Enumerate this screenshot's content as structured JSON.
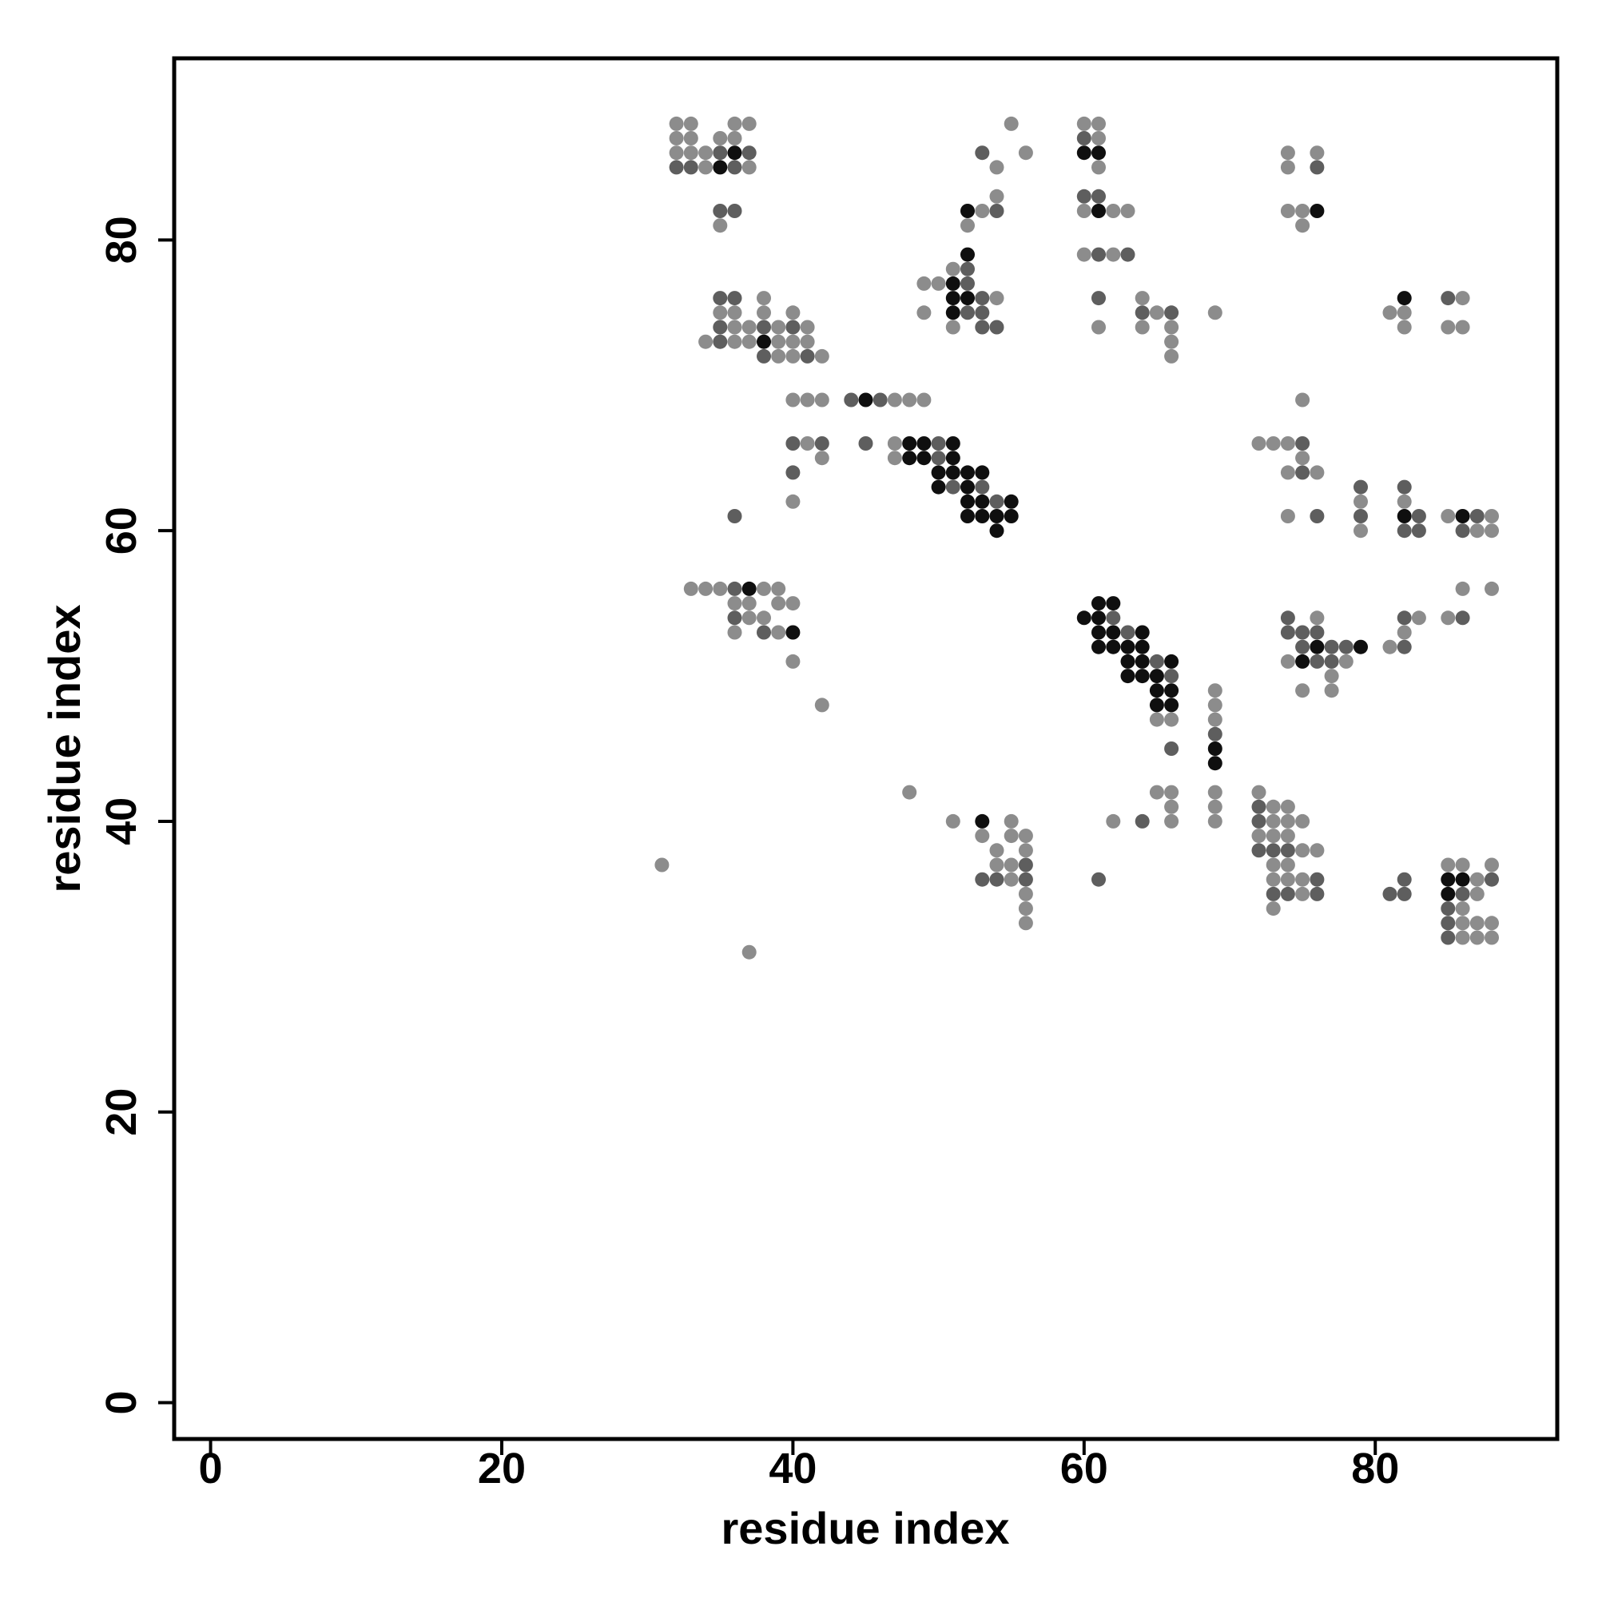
{
  "chart_data": {
    "type": "scatter",
    "title": "",
    "xlabel": "residue index",
    "ylabel": "residue index",
    "xlim": [
      -2.5,
      92.5
    ],
    "ylim": [
      -2.5,
      92.5
    ],
    "xticks": [
      0,
      20,
      40,
      60,
      80
    ],
    "yticks": [
      0,
      20,
      40,
      60,
      80
    ],
    "grid": false,
    "legend": "none",
    "point_color_note": "grayscale by level",
    "level_colors": {
      "1": "#8c8c8c",
      "2": "#5e5e5e",
      "3": "#0f0f0f"
    },
    "points": [
      [
        32,
        88,
        1
      ],
      [
        33,
        88,
        1
      ],
      [
        36,
        88,
        1
      ],
      [
        37,
        88,
        1
      ],
      [
        32,
        87,
        1
      ],
      [
        33,
        87,
        1
      ],
      [
        35,
        87,
        1
      ],
      [
        36,
        87,
        1
      ],
      [
        32,
        86,
        1
      ],
      [
        33,
        86,
        1
      ],
      [
        34,
        86,
        1
      ],
      [
        35,
        86,
        2
      ],
      [
        36,
        86,
        3
      ],
      [
        37,
        86,
        2
      ],
      [
        32,
        85,
        2
      ],
      [
        33,
        85,
        2
      ],
      [
        34,
        85,
        1
      ],
      [
        35,
        85,
        3
      ],
      [
        36,
        85,
        2
      ],
      [
        37,
        85,
        1
      ],
      [
        35,
        82,
        2
      ],
      [
        36,
        82,
        2
      ],
      [
        35,
        81,
        1
      ],
      [
        35,
        76,
        2
      ],
      [
        36,
        76,
        2
      ],
      [
        38,
        76,
        1
      ],
      [
        35,
        75,
        1
      ],
      [
        36,
        75,
        1
      ],
      [
        38,
        75,
        1
      ],
      [
        40,
        75,
        1
      ],
      [
        35,
        74,
        2
      ],
      [
        36,
        74,
        1
      ],
      [
        37,
        74,
        1
      ],
      [
        38,
        74,
        2
      ],
      [
        39,
        74,
        1
      ],
      [
        40,
        74,
        2
      ],
      [
        41,
        74,
        1
      ],
      [
        34,
        73,
        1
      ],
      [
        35,
        73,
        2
      ],
      [
        36,
        73,
        1
      ],
      [
        37,
        73,
        1
      ],
      [
        38,
        73,
        3
      ],
      [
        39,
        73,
        1
      ],
      [
        40,
        73,
        1
      ],
      [
        41,
        73,
        1
      ],
      [
        38,
        72,
        2
      ],
      [
        39,
        72,
        1
      ],
      [
        40,
        72,
        1
      ],
      [
        41,
        72,
        2
      ],
      [
        42,
        72,
        1
      ],
      [
        40,
        69,
        1
      ],
      [
        41,
        69,
        1
      ],
      [
        42,
        69,
        1
      ],
      [
        40,
        66,
        2
      ],
      [
        41,
        66,
        1
      ],
      [
        42,
        66,
        2
      ],
      [
        42,
        65,
        1
      ],
      [
        40,
        64,
        2
      ],
      [
        40,
        62,
        1
      ],
      [
        36,
        61,
        2
      ],
      [
        33,
        56,
        1
      ],
      [
        34,
        56,
        1
      ],
      [
        35,
        56,
        1
      ],
      [
        36,
        56,
        2
      ],
      [
        37,
        56,
        3
      ],
      [
        38,
        56,
        1
      ],
      [
        39,
        56,
        1
      ],
      [
        36,
        55,
        1
      ],
      [
        37,
        55,
        1
      ],
      [
        39,
        55,
        1
      ],
      [
        40,
        55,
        1
      ],
      [
        36,
        54,
        2
      ],
      [
        37,
        54,
        1
      ],
      [
        38,
        54,
        1
      ],
      [
        36,
        53,
        1
      ],
      [
        38,
        53,
        2
      ],
      [
        39,
        53,
        1
      ],
      [
        40,
        53,
        3
      ],
      [
        40,
        51,
        1
      ],
      [
        42,
        48,
        1
      ],
      [
        31,
        37,
        1
      ],
      [
        37,
        31,
        1
      ],
      [
        44,
        69,
        2
      ],
      [
        45,
        69,
        3
      ],
      [
        46,
        69,
        2
      ],
      [
        47,
        69,
        1
      ],
      [
        48,
        69,
        1
      ],
      [
        49,
        69,
        1
      ],
      [
        45,
        66,
        2
      ],
      [
        47,
        66,
        1
      ],
      [
        48,
        66,
        3
      ],
      [
        49,
        66,
        3
      ],
      [
        50,
        66,
        2
      ],
      [
        51,
        66,
        3
      ],
      [
        47,
        65,
        1
      ],
      [
        48,
        65,
        3
      ],
      [
        49,
        65,
        3
      ],
      [
        50,
        65,
        2
      ],
      [
        51,
        65,
        3
      ],
      [
        50,
        64,
        3
      ],
      [
        51,
        64,
        3
      ],
      [
        52,
        64,
        3
      ],
      [
        53,
        64,
        3
      ],
      [
        50,
        63,
        3
      ],
      [
        51,
        63,
        2
      ],
      [
        52,
        63,
        3
      ],
      [
        53,
        63,
        2
      ],
      [
        52,
        62,
        3
      ],
      [
        53,
        62,
        3
      ],
      [
        54,
        62,
        2
      ],
      [
        55,
        62,
        3
      ],
      [
        52,
        61,
        3
      ],
      [
        53,
        61,
        3
      ],
      [
        54,
        61,
        3
      ],
      [
        55,
        61,
        3
      ],
      [
        54,
        60,
        3
      ],
      [
        55,
        88,
        1
      ],
      [
        53,
        86,
        2
      ],
      [
        56,
        86,
        1
      ],
      [
        54,
        85,
        1
      ],
      [
        54,
        83,
        1
      ],
      [
        52,
        82,
        3
      ],
      [
        53,
        82,
        1
      ],
      [
        54,
        82,
        2
      ],
      [
        52,
        81,
        1
      ],
      [
        52,
        79,
        3
      ],
      [
        52,
        78,
        2
      ],
      [
        51,
        78,
        1
      ],
      [
        49,
        77,
        1
      ],
      [
        50,
        77,
        1
      ],
      [
        51,
        77,
        3
      ],
      [
        52,
        77,
        2
      ],
      [
        51,
        76,
        3
      ],
      [
        52,
        76,
        3
      ],
      [
        53,
        76,
        2
      ],
      [
        54,
        76,
        1
      ],
      [
        49,
        75,
        1
      ],
      [
        51,
        75,
        3
      ],
      [
        52,
        75,
        2
      ],
      [
        53,
        75,
        2
      ],
      [
        51,
        74,
        1
      ],
      [
        53,
        74,
        2
      ],
      [
        54,
        74,
        2
      ],
      [
        48,
        42,
        1
      ],
      [
        51,
        40,
        1
      ],
      [
        53,
        40,
        3
      ],
      [
        55,
        40,
        1
      ],
      [
        53,
        39,
        1
      ],
      [
        55,
        39,
        1
      ],
      [
        56,
        39,
        1
      ],
      [
        54,
        38,
        1
      ],
      [
        56,
        38,
        1
      ],
      [
        54,
        37,
        1
      ],
      [
        55,
        37,
        1
      ],
      [
        56,
        37,
        2
      ],
      [
        53,
        36,
        2
      ],
      [
        54,
        36,
        2
      ],
      [
        55,
        36,
        1
      ],
      [
        56,
        36,
        2
      ],
      [
        56,
        35,
        1
      ],
      [
        56,
        34,
        1
      ],
      [
        56,
        33,
        1
      ],
      [
        60,
        88,
        1
      ],
      [
        61,
        88,
        1
      ],
      [
        60,
        87,
        2
      ],
      [
        61,
        87,
        1
      ],
      [
        60,
        86,
        3
      ],
      [
        61,
        86,
        3
      ],
      [
        61,
        85,
        1
      ],
      [
        60,
        83,
        2
      ],
      [
        61,
        83,
        2
      ],
      [
        60,
        82,
        1
      ],
      [
        61,
        82,
        3
      ],
      [
        62,
        82,
        1
      ],
      [
        63,
        82,
        1
      ],
      [
        60,
        79,
        1
      ],
      [
        61,
        79,
        2
      ],
      [
        62,
        79,
        1
      ],
      [
        63,
        79,
        2
      ],
      [
        61,
        76,
        2
      ],
      [
        64,
        76,
        1
      ],
      [
        61,
        74,
        1
      ],
      [
        64,
        75,
        2
      ],
      [
        65,
        75,
        1
      ],
      [
        66,
        75,
        2
      ],
      [
        64,
        74,
        1
      ],
      [
        66,
        74,
        1
      ],
      [
        66,
        73,
        1
      ],
      [
        66,
        72,
        1
      ],
      [
        69,
        75,
        1
      ],
      [
        60,
        54,
        3
      ],
      [
        61,
        55,
        3
      ],
      [
        62,
        55,
        3
      ],
      [
        61,
        54,
        3
      ],
      [
        62,
        54,
        2
      ],
      [
        61,
        53,
        3
      ],
      [
        62,
        53,
        3
      ],
      [
        63,
        53,
        2
      ],
      [
        64,
        53,
        3
      ],
      [
        61,
        52,
        3
      ],
      [
        62,
        52,
        3
      ],
      [
        63,
        52,
        3
      ],
      [
        64,
        52,
        3
      ],
      [
        63,
        51,
        3
      ],
      [
        64,
        51,
        3
      ],
      [
        65,
        51,
        2
      ],
      [
        66,
        51,
        3
      ],
      [
        63,
        50,
        3
      ],
      [
        64,
        50,
        3
      ],
      [
        65,
        50,
        3
      ],
      [
        66,
        50,
        2
      ],
      [
        65,
        49,
        3
      ],
      [
        66,
        49,
        3
      ],
      [
        65,
        48,
        3
      ],
      [
        66,
        48,
        3
      ],
      [
        65,
        47,
        1
      ],
      [
        66,
        47,
        1
      ],
      [
        66,
        45,
        2
      ],
      [
        69,
        49,
        1
      ],
      [
        69,
        48,
        1
      ],
      [
        69,
        47,
        1
      ],
      [
        69,
        46,
        2
      ],
      [
        69,
        45,
        3
      ],
      [
        69,
        44,
        3
      ],
      [
        65,
        42,
        1
      ],
      [
        66,
        42,
        1
      ],
      [
        66,
        41,
        1
      ],
      [
        66,
        40,
        1
      ],
      [
        64,
        40,
        2
      ],
      [
        62,
        40,
        1
      ],
      [
        61,
        36,
        2
      ],
      [
        69,
        42,
        1
      ],
      [
        69,
        41,
        1
      ],
      [
        69,
        40,
        1
      ],
      [
        74,
        86,
        1
      ],
      [
        76,
        86,
        1
      ],
      [
        74,
        85,
        1
      ],
      [
        76,
        85,
        2
      ],
      [
        74,
        82,
        1
      ],
      [
        75,
        82,
        1
      ],
      [
        76,
        82,
        3
      ],
      [
        75,
        81,
        1
      ],
      [
        82,
        76,
        3
      ],
      [
        85,
        76,
        2
      ],
      [
        86,
        76,
        1
      ],
      [
        81,
        75,
        1
      ],
      [
        82,
        75,
        1
      ],
      [
        82,
        74,
        1
      ],
      [
        85,
        74,
        1
      ],
      [
        86,
        74,
        1
      ],
      [
        75,
        69,
        1
      ],
      [
        72,
        66,
        1
      ],
      [
        73,
        66,
        1
      ],
      [
        74,
        66,
        1
      ],
      [
        75,
        66,
        2
      ],
      [
        75,
        65,
        1
      ],
      [
        74,
        64,
        1
      ],
      [
        75,
        64,
        2
      ],
      [
        76,
        64,
        1
      ],
      [
        74,
        61,
        1
      ],
      [
        76,
        61,
        2
      ],
      [
        79,
        63,
        2
      ],
      [
        82,
        63,
        2
      ],
      [
        79,
        62,
        1
      ],
      [
        82,
        62,
        1
      ],
      [
        79,
        61,
        2
      ],
      [
        82,
        61,
        3
      ],
      [
        83,
        61,
        2
      ],
      [
        85,
        61,
        1
      ],
      [
        86,
        61,
        3
      ],
      [
        87,
        61,
        2
      ],
      [
        88,
        61,
        1
      ],
      [
        79,
        60,
        1
      ],
      [
        82,
        60,
        2
      ],
      [
        83,
        60,
        2
      ],
      [
        86,
        60,
        2
      ],
      [
        87,
        60,
        1
      ],
      [
        88,
        60,
        1
      ],
      [
        86,
        56,
        1
      ],
      [
        88,
        56,
        1
      ],
      [
        74,
        54,
        2
      ],
      [
        76,
        54,
        1
      ],
      [
        82,
        54,
        2
      ],
      [
        83,
        54,
        1
      ],
      [
        85,
        54,
        1
      ],
      [
        86,
        54,
        2
      ],
      [
        74,
        53,
        2
      ],
      [
        75,
        53,
        2
      ],
      [
        76,
        53,
        2
      ],
      [
        82,
        53,
        1
      ],
      [
        75,
        52,
        2
      ],
      [
        76,
        52,
        3
      ],
      [
        77,
        52,
        2
      ],
      [
        78,
        52,
        2
      ],
      [
        79,
        52,
        3
      ],
      [
        81,
        52,
        1
      ],
      [
        82,
        52,
        2
      ],
      [
        74,
        51,
        1
      ],
      [
        75,
        51,
        3
      ],
      [
        76,
        51,
        2
      ],
      [
        77,
        51,
        2
      ],
      [
        78,
        51,
        1
      ],
      [
        77,
        50,
        1
      ],
      [
        75,
        49,
        1
      ],
      [
        77,
        49,
        1
      ],
      [
        72,
        42,
        1
      ],
      [
        72,
        41,
        2
      ],
      [
        73,
        41,
        1
      ],
      [
        74,
        41,
        1
      ],
      [
        72,
        40,
        2
      ],
      [
        73,
        40,
        1
      ],
      [
        74,
        40,
        1
      ],
      [
        75,
        40,
        1
      ],
      [
        72,
        39,
        1
      ],
      [
        73,
        39,
        1
      ],
      [
        74,
        39,
        1
      ],
      [
        72,
        38,
        2
      ],
      [
        73,
        38,
        2
      ],
      [
        74,
        38,
        2
      ],
      [
        75,
        38,
        1
      ],
      [
        76,
        38,
        1
      ],
      [
        73,
        37,
        1
      ],
      [
        74,
        37,
        1
      ],
      [
        73,
        36,
        1
      ],
      [
        74,
        36,
        1
      ],
      [
        75,
        36,
        1
      ],
      [
        76,
        36,
        2
      ],
      [
        73,
        35,
        2
      ],
      [
        74,
        35,
        2
      ],
      [
        75,
        35,
        1
      ],
      [
        76,
        35,
        2
      ],
      [
        73,
        34,
        1
      ],
      [
        82,
        36,
        2
      ],
      [
        81,
        35,
        2
      ],
      [
        82,
        35,
        2
      ],
      [
        85,
        37,
        1
      ],
      [
        86,
        37,
        1
      ],
      [
        88,
        37,
        1
      ],
      [
        85,
        36,
        3
      ],
      [
        86,
        36,
        3
      ],
      [
        87,
        36,
        1
      ],
      [
        88,
        36,
        2
      ],
      [
        85,
        35,
        3
      ],
      [
        86,
        35,
        2
      ],
      [
        87,
        35,
        1
      ],
      [
        85,
        34,
        2
      ],
      [
        86,
        34,
        1
      ],
      [
        85,
        33,
        2
      ],
      [
        86,
        33,
        1
      ],
      [
        87,
        33,
        1
      ],
      [
        88,
        33,
        1
      ],
      [
        85,
        32,
        2
      ],
      [
        86,
        32,
        1
      ],
      [
        87,
        32,
        1
      ],
      [
        88,
        32,
        1
      ]
    ]
  }
}
